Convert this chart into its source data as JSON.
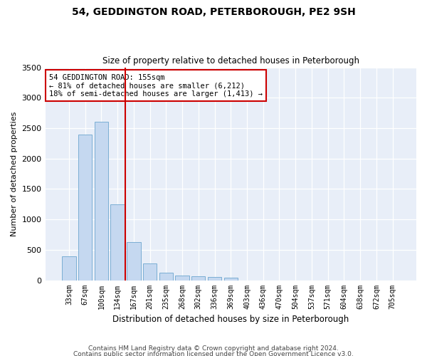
{
  "title1": "54, GEDDINGTON ROAD, PETERBOROUGH, PE2 9SH",
  "title2": "Size of property relative to detached houses in Peterborough",
  "xlabel": "Distribution of detached houses by size in Peterborough",
  "ylabel": "Number of detached properties",
  "categories": [
    "33sqm",
    "67sqm",
    "100sqm",
    "134sqm",
    "167sqm",
    "201sqm",
    "235sqm",
    "268sqm",
    "302sqm",
    "336sqm",
    "369sqm",
    "403sqm",
    "436sqm",
    "470sqm",
    "504sqm",
    "537sqm",
    "571sqm",
    "604sqm",
    "638sqm",
    "672sqm",
    "705sqm"
  ],
  "values": [
    390,
    2400,
    2600,
    1250,
    630,
    270,
    120,
    75,
    65,
    50,
    40,
    0,
    0,
    0,
    0,
    0,
    0,
    0,
    0,
    0,
    0
  ],
  "bar_color": "#c5d8f0",
  "bar_edge_color": "#7baed4",
  "vline_color": "#cc0000",
  "annotation_text": "54 GEDDINGTON ROAD: 155sqm\n← 81% of detached houses are smaller (6,212)\n18% of semi-detached houses are larger (1,413) →",
  "annotation_box_color": "#ffffff",
  "annotation_box_edge": "#cc0000",
  "ylim": [
    0,
    3500
  ],
  "yticks": [
    0,
    500,
    1000,
    1500,
    2000,
    2500,
    3000,
    3500
  ],
  "footer1": "Contains HM Land Registry data © Crown copyright and database right 2024.",
  "footer2": "Contains public sector information licensed under the Open Government Licence v3.0.",
  "plot_bg": "#e8eef8"
}
